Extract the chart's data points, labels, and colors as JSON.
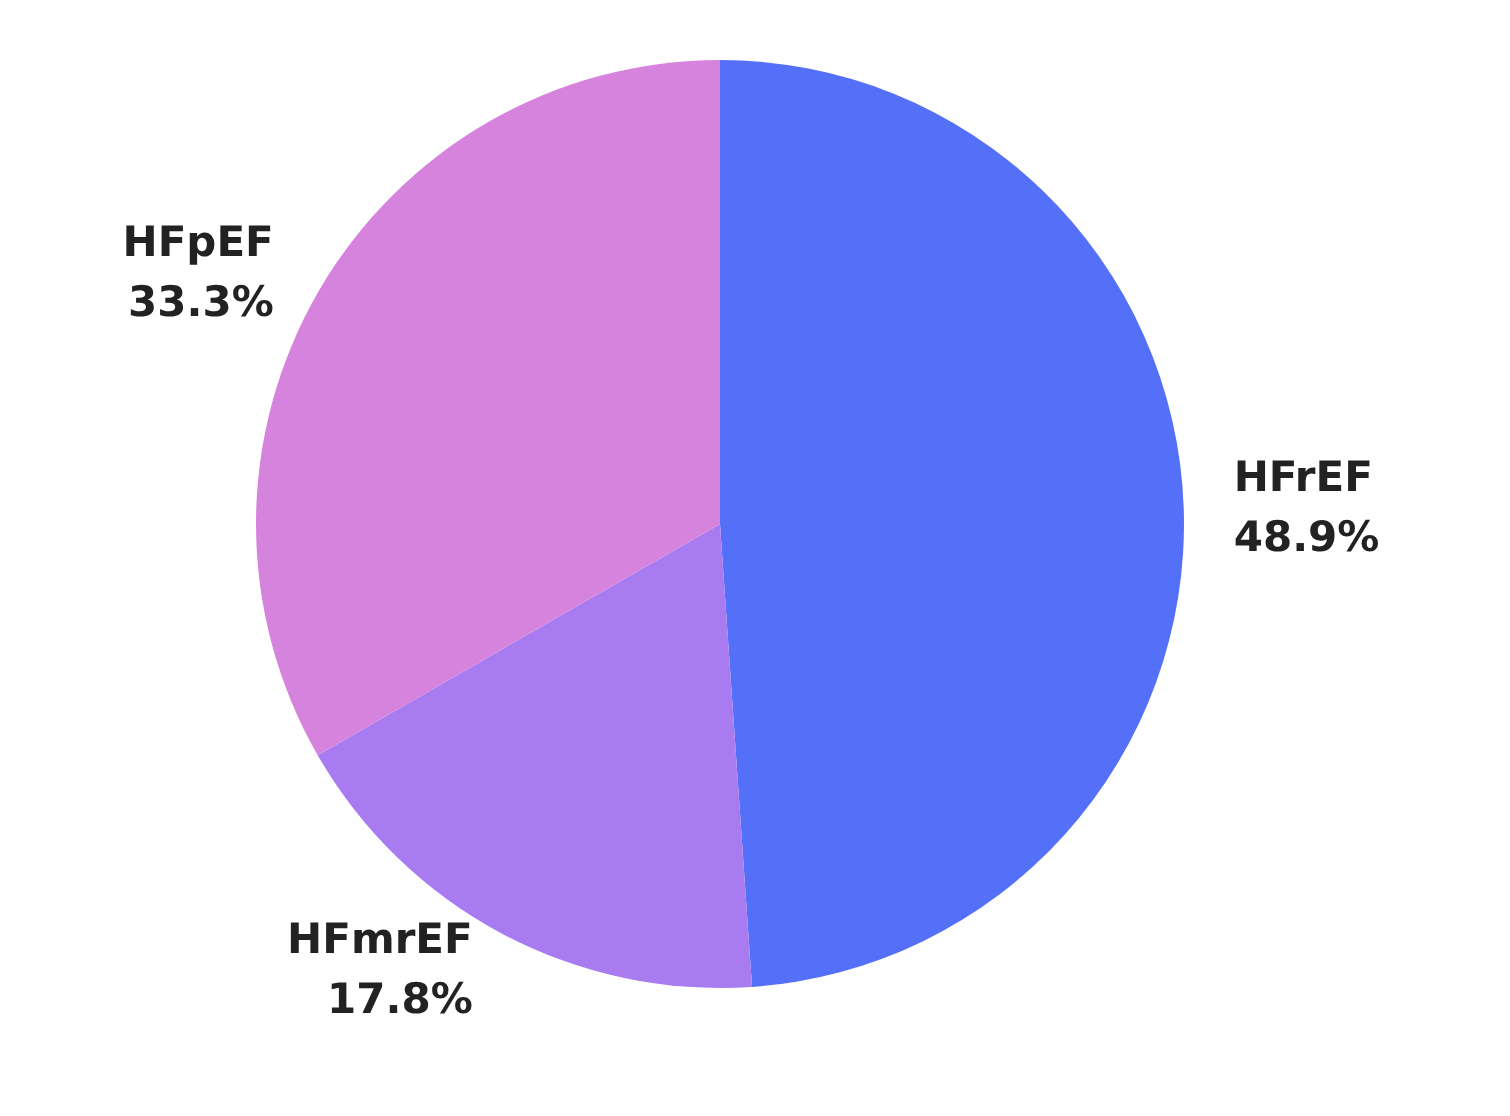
{
  "chart_data": {
    "type": "pie",
    "categories": [
      "HFrEF",
      "HFmrEF",
      "HFpEF"
    ],
    "values": [
      48.9,
      17.8,
      33.3
    ],
    "colors": [
      "#5570f8",
      "#a97bf0",
      "#d683dd"
    ],
    "value_labels": [
      "48.9%",
      "17.8%",
      "33.3%"
    ],
    "legend": false
  }
}
